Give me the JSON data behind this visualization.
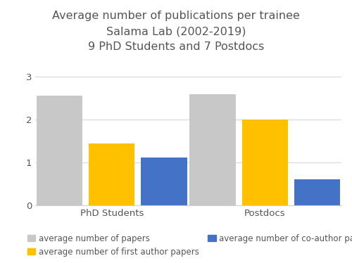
{
  "title_line1": "Average number of publications per trainee",
  "title_line2": "Salama Lab (2002-2019)",
  "title_line3": "9 PhD Students and 7 Postdocs",
  "categories": [
    "PhD Students",
    "Postdocs"
  ],
  "series": {
    "average number of papers": [
      2.56,
      2.6
    ],
    "average number of first author papers": [
      1.44,
      2.0
    ],
    "average number of co-author papers": [
      1.11,
      0.6
    ]
  },
  "colors": {
    "average number of papers": "#c8c8c8",
    "average number of first author papers": "#FFC000",
    "average number of co-author papers": "#4472C4"
  },
  "ylim": [
    0,
    3.2
  ],
  "yticks": [
    0,
    1,
    2,
    3
  ],
  "bar_width": 0.18,
  "background_color": "#ffffff",
  "legend_labels": [
    "average number of papers",
    "average number of first author papers",
    "average number of co-author papers"
  ],
  "title_fontsize": 11.5,
  "tick_fontsize": 9.5,
  "legend_fontsize": 8.5
}
